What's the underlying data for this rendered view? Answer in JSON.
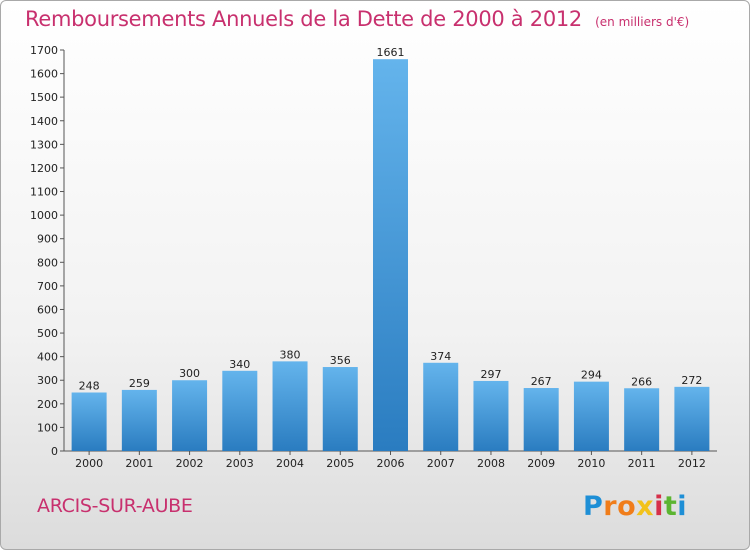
{
  "title": "Remboursements Annuels de la Dette de 2000 à 2012",
  "unit": "(en milliers d'€)",
  "place": "ARCIS-SUR-AUBE",
  "logo": {
    "parts": [
      "P",
      "ro",
      "x",
      "i",
      "t",
      "i"
    ]
  },
  "colors": {
    "title": "#c8306e",
    "bar_top": "#64b4ec",
    "bar_bottom": "#2a7cc0"
  },
  "chart_data": {
    "type": "bar",
    "categories": [
      "2000",
      "2001",
      "2002",
      "2003",
      "2004",
      "2005",
      "2006",
      "2007",
      "2008",
      "2009",
      "2010",
      "2011",
      "2012"
    ],
    "values": [
      248,
      259,
      300,
      340,
      380,
      356,
      1661,
      374,
      297,
      267,
      294,
      266,
      272
    ],
    "ylim": [
      0,
      1700
    ],
    "yticks": [
      0,
      100,
      200,
      300,
      400,
      500,
      600,
      700,
      800,
      900,
      1000,
      1100,
      1200,
      1300,
      1400,
      1500,
      1600,
      1700
    ],
    "grid": false,
    "data_labels": true
  }
}
